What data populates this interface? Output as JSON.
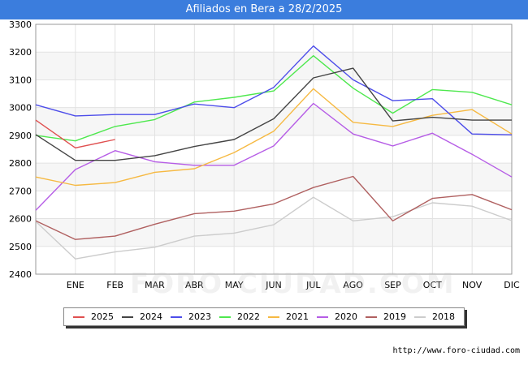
{
  "header": {
    "title": "Afiliados en Bera a 28/2/2025"
  },
  "footer": {
    "source": "http://www.foro-ciudad.com",
    "watermark": "FORO-CIUDAD.COM"
  },
  "chart_data": {
    "type": "line",
    "title": "Afiliados en Bera a 28/2/2025",
    "xlabel": "",
    "ylabel": "",
    "categories": [
      "",
      "ENE",
      "FEB",
      "MAR",
      "ABR",
      "MAY",
      "JUN",
      "JUL",
      "AGO",
      "SEP",
      "OCT",
      "NOV",
      "DIC"
    ],
    "ylim": [
      2400,
      3300
    ],
    "yticks": [
      2400,
      2500,
      2600,
      2700,
      2800,
      2900,
      3000,
      3100,
      3200,
      3300
    ],
    "grid": true,
    "legend_position": "bottom",
    "series": [
      {
        "name": "2025",
        "color": "#e05050",
        "values": [
          2955,
          2855,
          2885,
          null,
          null,
          null,
          null,
          null,
          null,
          null,
          null,
          null,
          null
        ]
      },
      {
        "name": "2024",
        "color": "#444444",
        "values": [
          2903,
          2810,
          2810,
          2827,
          2860,
          2885,
          2960,
          3107,
          3142,
          2952,
          2965,
          2955,
          2955
        ]
      },
      {
        "name": "2023",
        "color": "#4d4dea",
        "values": [
          3010,
          2970,
          2975,
          2975,
          3013,
          3000,
          3073,
          3222,
          3100,
          3025,
          3032,
          2905,
          2902
        ]
      },
      {
        "name": "2022",
        "color": "#4ee84e",
        "values": [
          2900,
          2880,
          2932,
          2957,
          3020,
          3037,
          3060,
          3187,
          3070,
          2980,
          3065,
          3055,
          3010
        ]
      },
      {
        "name": "2021",
        "color": "#f6b942",
        "values": [
          2750,
          2720,
          2730,
          2767,
          2780,
          2838,
          2915,
          3068,
          2947,
          2932,
          2972,
          2993,
          2905
        ]
      },
      {
        "name": "2020",
        "color": "#b65de6",
        "values": [
          2630,
          2777,
          2845,
          2805,
          2792,
          2792,
          2862,
          3015,
          2905,
          2862,
          2908,
          2832,
          2750
        ]
      },
      {
        "name": "2019",
        "color": "#b06060",
        "values": [
          2592,
          2525,
          2537,
          2580,
          2618,
          2627,
          2653,
          2712,
          2752,
          2592,
          2673,
          2687,
          2632
        ]
      },
      {
        "name": "2018",
        "color": "#cccccc",
        "values": [
          2590,
          2455,
          2480,
          2497,
          2537,
          2548,
          2578,
          2677,
          2592,
          2607,
          2657,
          2645,
          2593
        ]
      }
    ]
  }
}
